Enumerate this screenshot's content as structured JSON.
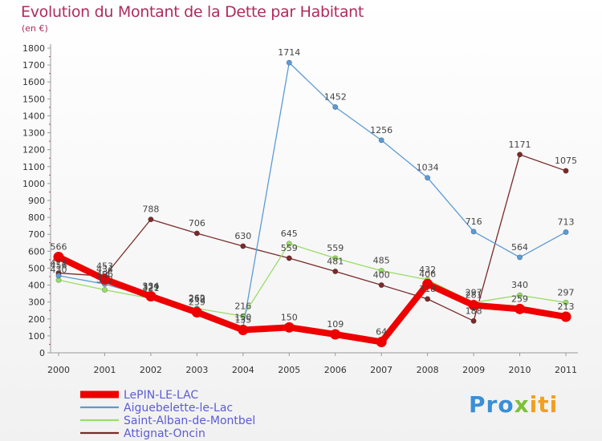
{
  "header": {
    "title": "Evolution du Montant de la Dette par Habitant",
    "subtitle": "(en €)"
  },
  "logo": {
    "parts": [
      "Pro",
      "x",
      "iti"
    ]
  },
  "colors": {
    "title": "#b02a5e",
    "legend_text": "#5c5cd6"
  },
  "chart_data": {
    "type": "line",
    "title": "Evolution du Montant de la Dette par Habitant",
    "ylabel": "(en €)",
    "xlabel": "",
    "x": [
      "2000",
      "2001",
      "2002",
      "2003",
      "2004",
      "2005",
      "2006",
      "2007",
      "2008",
      "2009",
      "2010",
      "2011"
    ],
    "ylim": [
      0,
      1800
    ],
    "yticks": [
      0,
      100,
      200,
      300,
      400,
      500,
      600,
      700,
      800,
      900,
      1000,
      1100,
      1200,
      1300,
      1400,
      1500,
      1600,
      1700,
      1800
    ],
    "grid": false,
    "legend_position": "bottom-left",
    "series": [
      {
        "name": "LePIN-LE-LAC",
        "color": "#ee0000",
        "values": [
          566,
          434,
          334,
          239,
          135,
          150,
          109,
          64,
          406,
          281,
          259,
          213
        ],
        "labels": [
          "566",
          "434",
          "334",
          "239",
          "135",
          "150",
          "109",
          "64",
          "406",
          "281",
          "259",
          "213"
        ]
      },
      {
        "name": "Aiguebelette-le-Lac",
        "color": "#5b9bd5",
        "values": [
          456,
          406,
          329,
          259,
          150,
          1714,
          1452,
          1256,
          1034,
          716,
          564,
          713
        ],
        "labels": [
          "456",
          "406",
          "329",
          "259",
          "150",
          "1714",
          "1452",
          "1256",
          "1034",
          "716",
          "564",
          "713"
        ]
      },
      {
        "name": "Saint-Alban-de-Montbel",
        "color": "#99dd66",
        "values": [
          430,
          372,
          321,
          262,
          216,
          645,
          559,
          485,
          432,
          297,
          340,
          297
        ],
        "labels": [
          "430",
          "372",
          "321",
          "262",
          "216",
          "645",
          "559",
          "485",
          "432",
          "297",
          "340",
          "297"
        ]
      },
      {
        "name": "Attignat-Oncin",
        "color": "#7a2a2a",
        "values": [
          471,
          453,
          788,
          706,
          630,
          559,
          481,
          400,
          318,
          188,
          1171,
          1075
        ],
        "labels": [
          "471",
          "453",
          "788",
          "706",
          "630",
          "559",
          "481",
          "400",
          "318",
          "188",
          "1171",
          "1075"
        ]
      }
    ]
  }
}
